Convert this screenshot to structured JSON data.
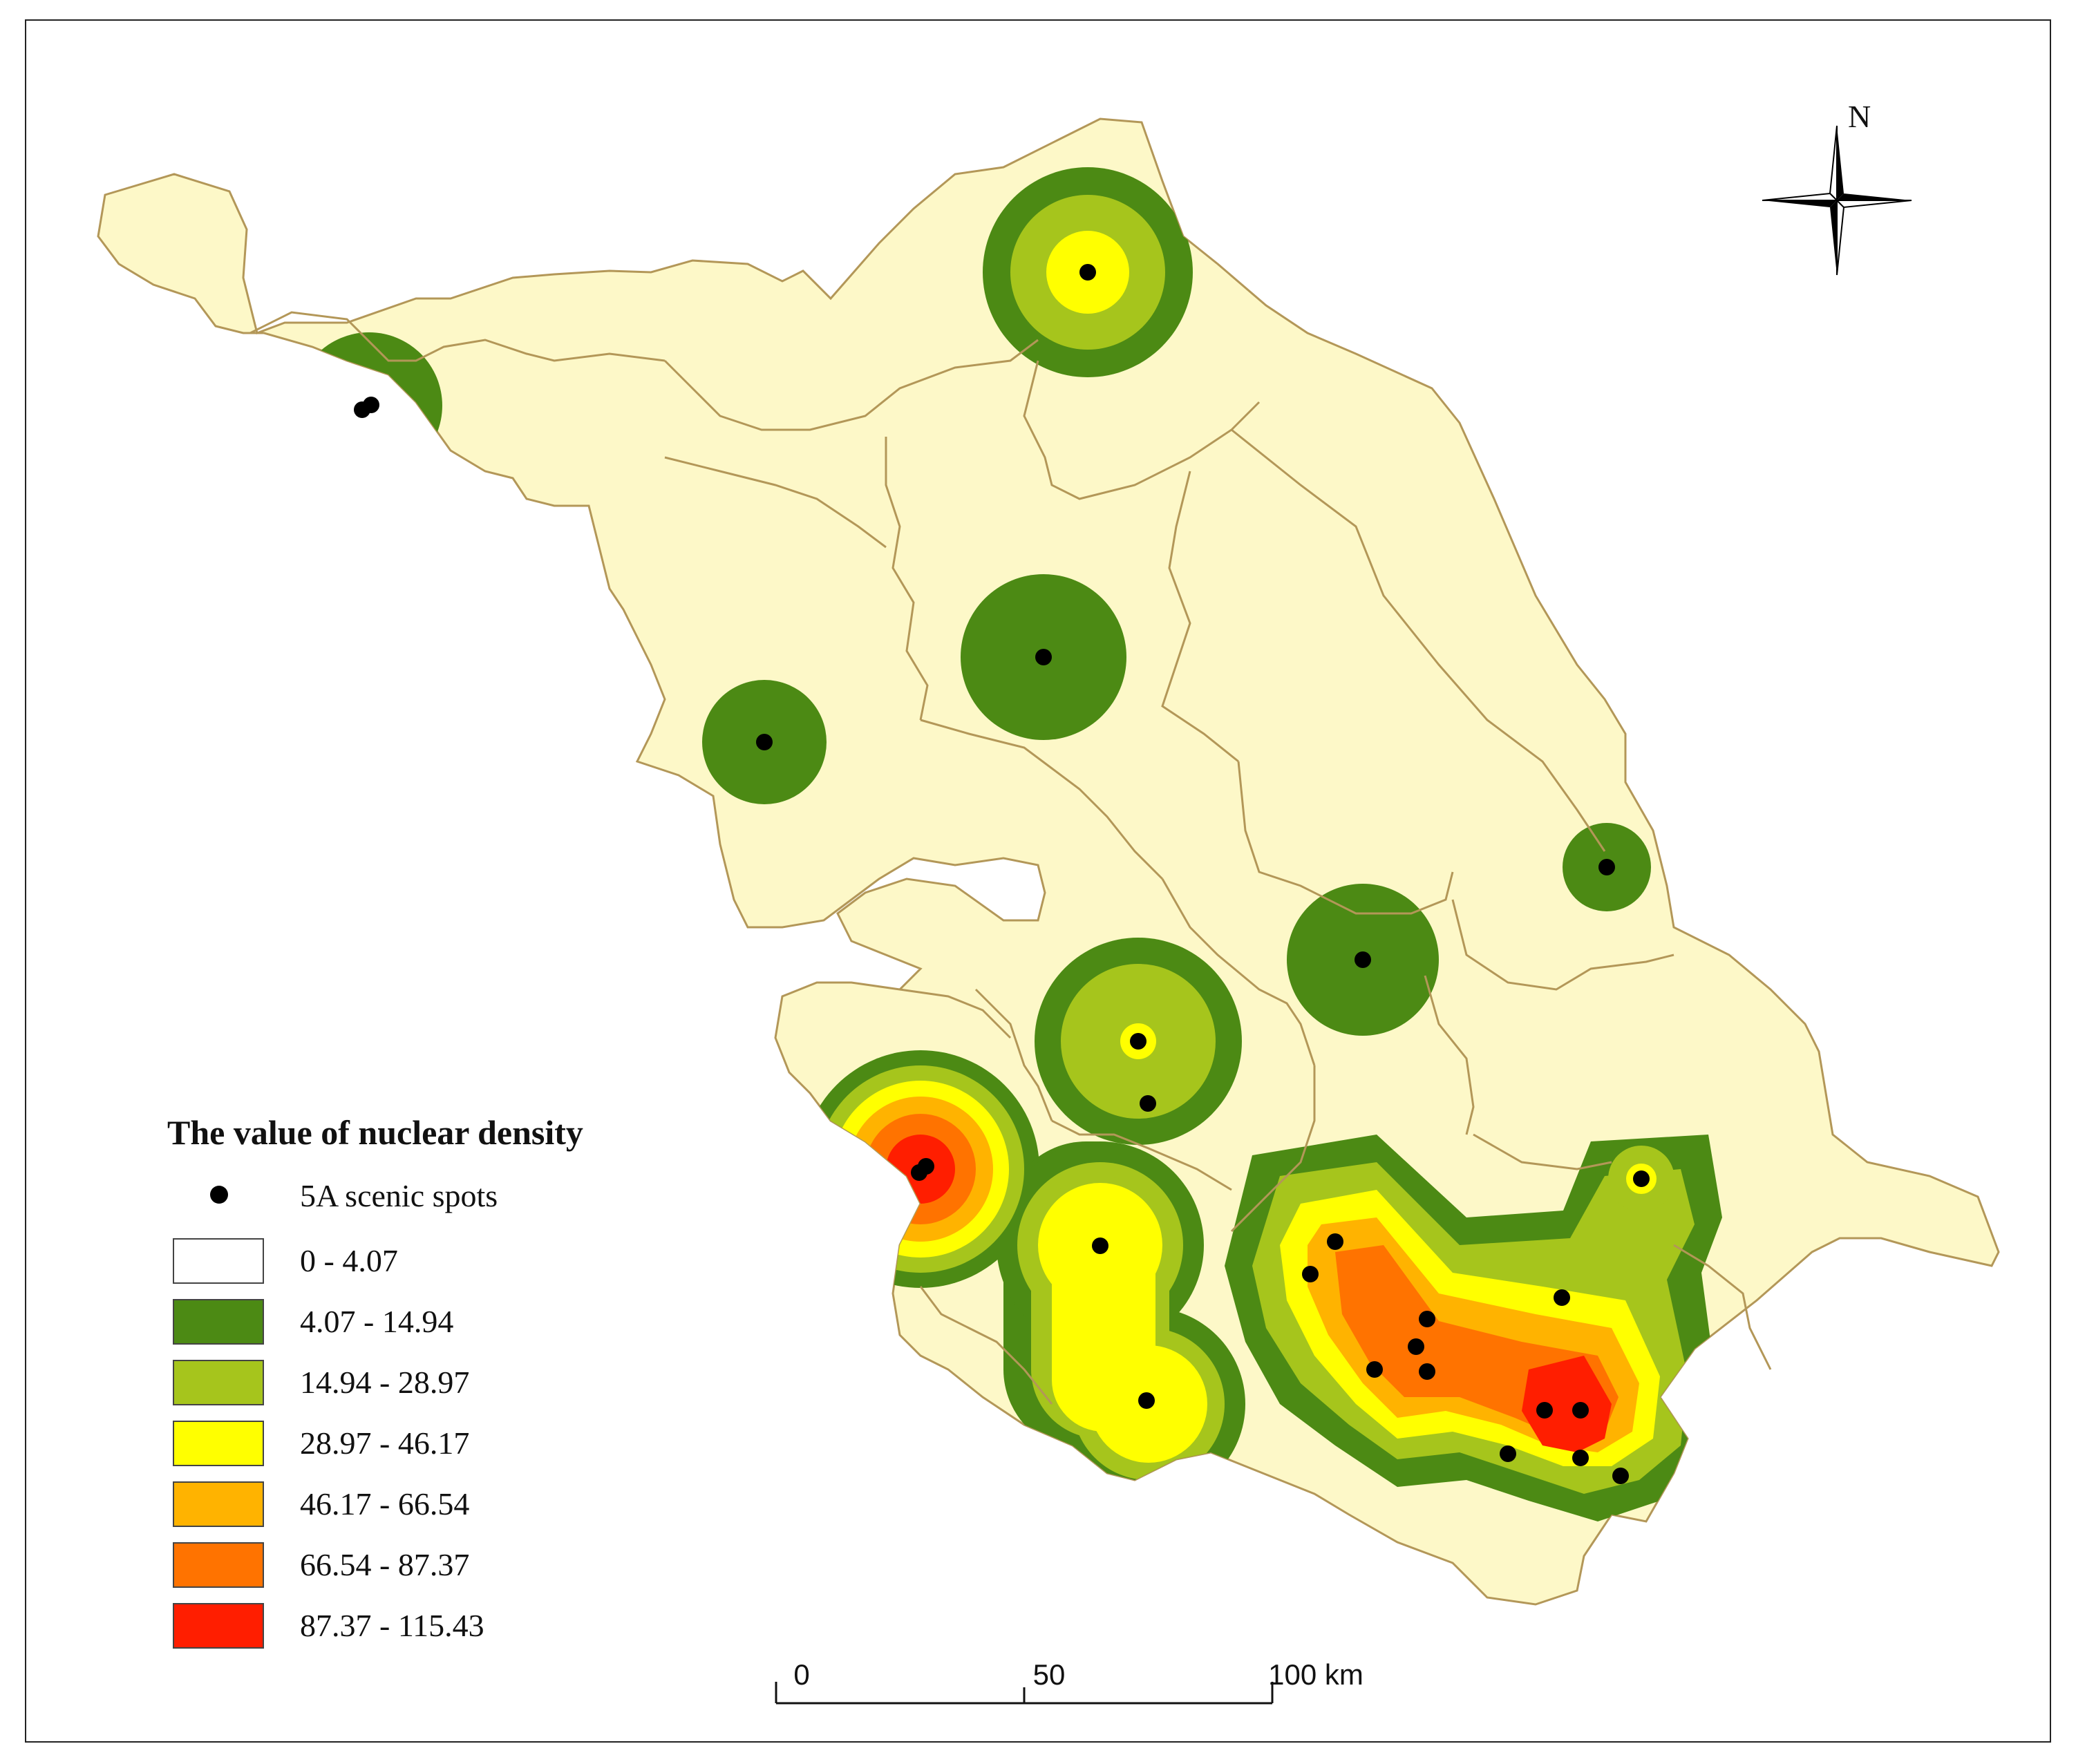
{
  "legend": {
    "title": "The value of nuclear density",
    "point_label": "5A scenic spots",
    "classes": [
      {
        "label": "0 - 4.07",
        "color": "#ffffff"
      },
      {
        "label": "4.07 - 14.94",
        "color": "#4c8a14"
      },
      {
        "label": "14.94 - 28.97",
        "color": "#a6c51c"
      },
      {
        "label": "28.97 - 46.17",
        "color": "#ffff00"
      },
      {
        "label": "46.17 - 66.54",
        "color": "#ffb300"
      },
      {
        "label": "66.54 - 87.37",
        "color": "#ff7300"
      },
      {
        "label": "87.37 - 115.43",
        "color": "#ff1e00"
      }
    ]
  },
  "scale_bar": {
    "labels": [
      "0",
      "50",
      "100 km"
    ]
  },
  "north_arrow": {
    "label": "N",
    "icon": "compass-rose-icon"
  },
  "colors": {
    "land_fill": "#fdf8c8",
    "boundary": "#b39758",
    "spot": "#000000"
  }
}
